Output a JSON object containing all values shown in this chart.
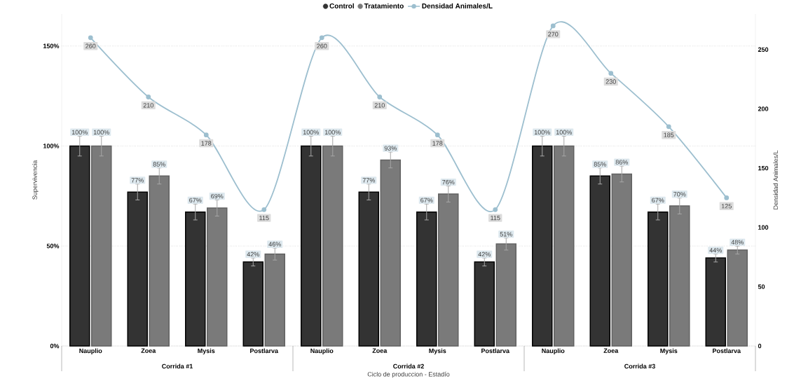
{
  "chart_data": {
    "type": "bar",
    "categories": [
      "Nauplio",
      "Zoea",
      "Mysis",
      "Postlarva",
      "Nauplio",
      "Zoea",
      "Mysis",
      "Postlarva",
      "Nauplio",
      "Zoea",
      "Mysis",
      "Postlarva"
    ],
    "series": [
      {
        "name": "Control",
        "color": "#333333",
        "values": [
          100,
          77,
          67,
          42,
          100,
          77,
          67,
          42,
          100,
          85,
          67,
          44
        ],
        "errors": [
          5,
          4,
          4,
          2,
          5,
          4,
          4,
          2,
          5,
          4,
          4,
          2
        ],
        "value_labels": [
          "100%",
          "77%",
          "67%",
          "42%",
          "100%",
          "77%",
          "67%",
          "42%",
          "100%",
          "85%",
          "67%",
          "44%"
        ]
      },
      {
        "name": "Tratamiento",
        "color": "#7a7a7a",
        "values": [
          100,
          85,
          69,
          46,
          100,
          93,
          76,
          51,
          100,
          86,
          70,
          48
        ],
        "errors": [
          5,
          4,
          4,
          3,
          5,
          4,
          4,
          3,
          5,
          4,
          4,
          2
        ],
        "value_labels": [
          "100%",
          "85%",
          "69%",
          "46%",
          "100%",
          "93%",
          "76%",
          "51%",
          "100%",
          "86%",
          "70%",
          "48%"
        ]
      },
      {
        "name": "Densidad Animales/L",
        "type": "line",
        "axis": "y2",
        "color": "#9dbfcf",
        "values": [
          260,
          210,
          178,
          115,
          260,
          210,
          178,
          115,
          270,
          230,
          185,
          125
        ],
        "value_labels": [
          "260",
          "210",
          "178",
          "115",
          "260",
          "210",
          "178",
          "115",
          "270",
          "230",
          "185",
          "125"
        ]
      }
    ],
    "xlabel": "Ciclo de produccion - Estadío",
    "ylabel": "Supervivencia",
    "y2label": "Densidad Animales/L",
    "ylim": [
      0,
      166
    ],
    "yticks": [
      {
        "value": 0,
        "label": "0%"
      },
      {
        "value": 50,
        "label": "50%"
      },
      {
        "value": 100,
        "label": "100%"
      },
      {
        "value": 150,
        "label": "150%"
      }
    ],
    "y2lim": [
      0,
      280
    ],
    "y2ticks": [
      0,
      50,
      100,
      150,
      200,
      250
    ],
    "annotations": [
      "Corrida #1",
      "Corrida #2",
      "Corrida #3"
    ],
    "grid": "y",
    "legend": "top",
    "marker": "circle"
  }
}
